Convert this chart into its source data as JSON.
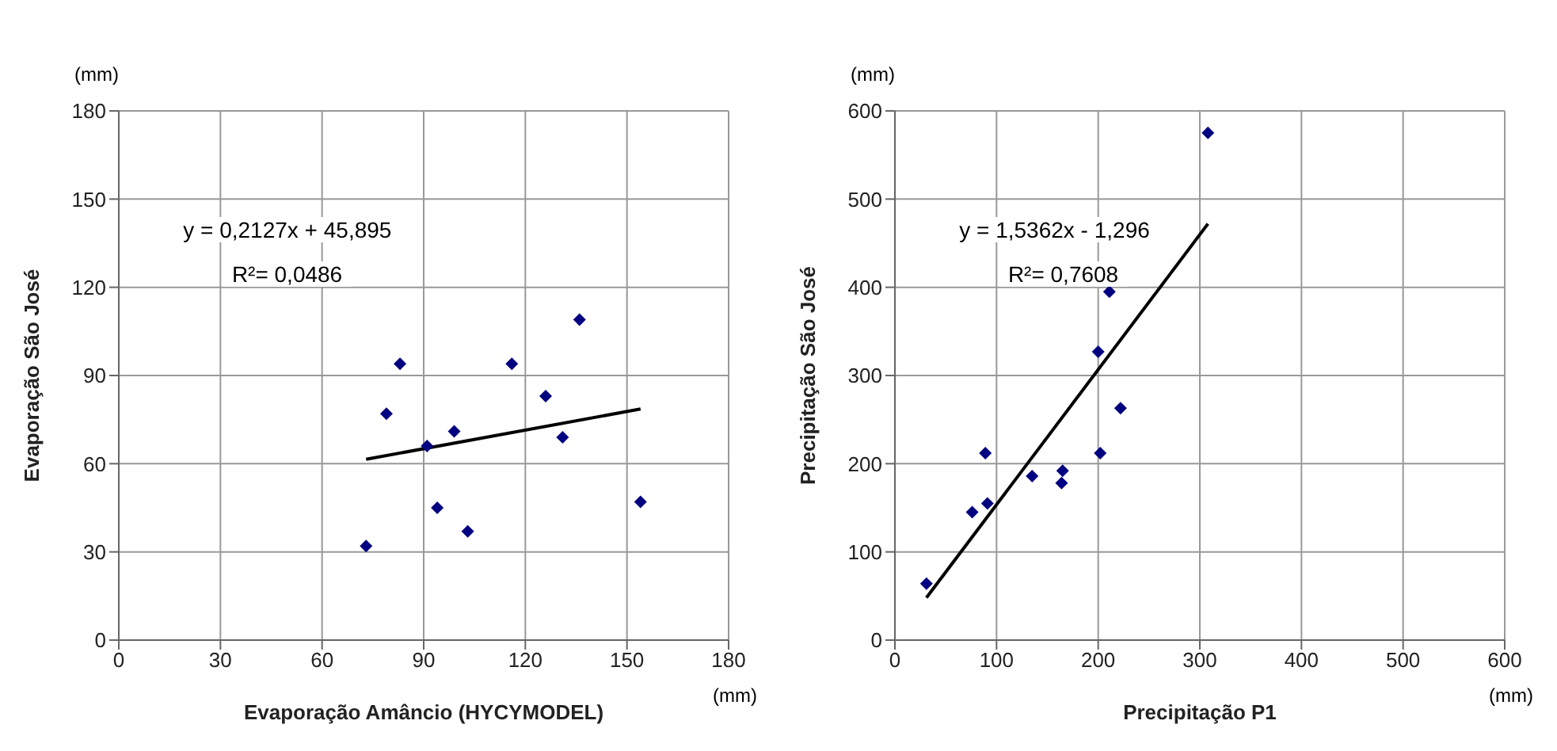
{
  "chart_data": [
    {
      "type": "scatter",
      "xlabel": "Evaporação Amâncio (HYCYMODEL)",
      "ylabel": "Evaporação São José",
      "xlim": [
        0,
        180
      ],
      "xticks": [
        0,
        30,
        60,
        90,
        120,
        150,
        180
      ],
      "ylim": [
        0,
        180
      ],
      "yticks": [
        0,
        30,
        60,
        90,
        120,
        150,
        180
      ],
      "grid": true,
      "annotations": [
        "y = 0,2127x + 45,895",
        "R²= 0,0486",
        "(mm)",
        "(mm)"
      ],
      "series": [
        {
          "color": "#000080",
          "marker": "diamond",
          "x": [
            73,
            79,
            83,
            91,
            94,
            99,
            103,
            116,
            126,
            131,
            136,
            154
          ],
          "values": [
            32,
            77,
            94,
            66,
            45,
            71,
            37,
            94,
            83,
            69,
            109,
            47
          ]
        },
        {
          "type": "line",
          "marker": "none",
          "color": "#000000",
          "x": [
            73,
            154
          ],
          "values": [
            61.5,
            78.6
          ]
        }
      ]
    },
    {
      "type": "scatter",
      "xlabel": "Precipitação P1",
      "ylabel": "Precipitação São José",
      "xlim": [
        0,
        600
      ],
      "xticks": [
        0,
        100,
        200,
        300,
        400,
        500,
        600
      ],
      "ylim": [
        0,
        600
      ],
      "yticks": [
        0,
        100,
        200,
        300,
        400,
        500,
        600
      ],
      "grid": true,
      "annotations": [
        "y = 1,5362x - 1,296",
        "R²= 0,7608",
        "(mm)",
        "(mm)"
      ],
      "series": [
        {
          "color": "#000080",
          "marker": "diamond",
          "x": [
            31,
            76,
            89,
            91,
            135,
            164,
            165,
            200,
            202,
            211,
            222,
            308
          ],
          "values": [
            64,
            145,
            212,
            155,
            186,
            178,
            192,
            327,
            212,
            395,
            263,
            575
          ]
        },
        {
          "type": "line",
          "marker": "none",
          "color": "#000000",
          "x": [
            31,
            308
          ],
          "values": [
            48,
            472
          ]
        }
      ]
    }
  ]
}
